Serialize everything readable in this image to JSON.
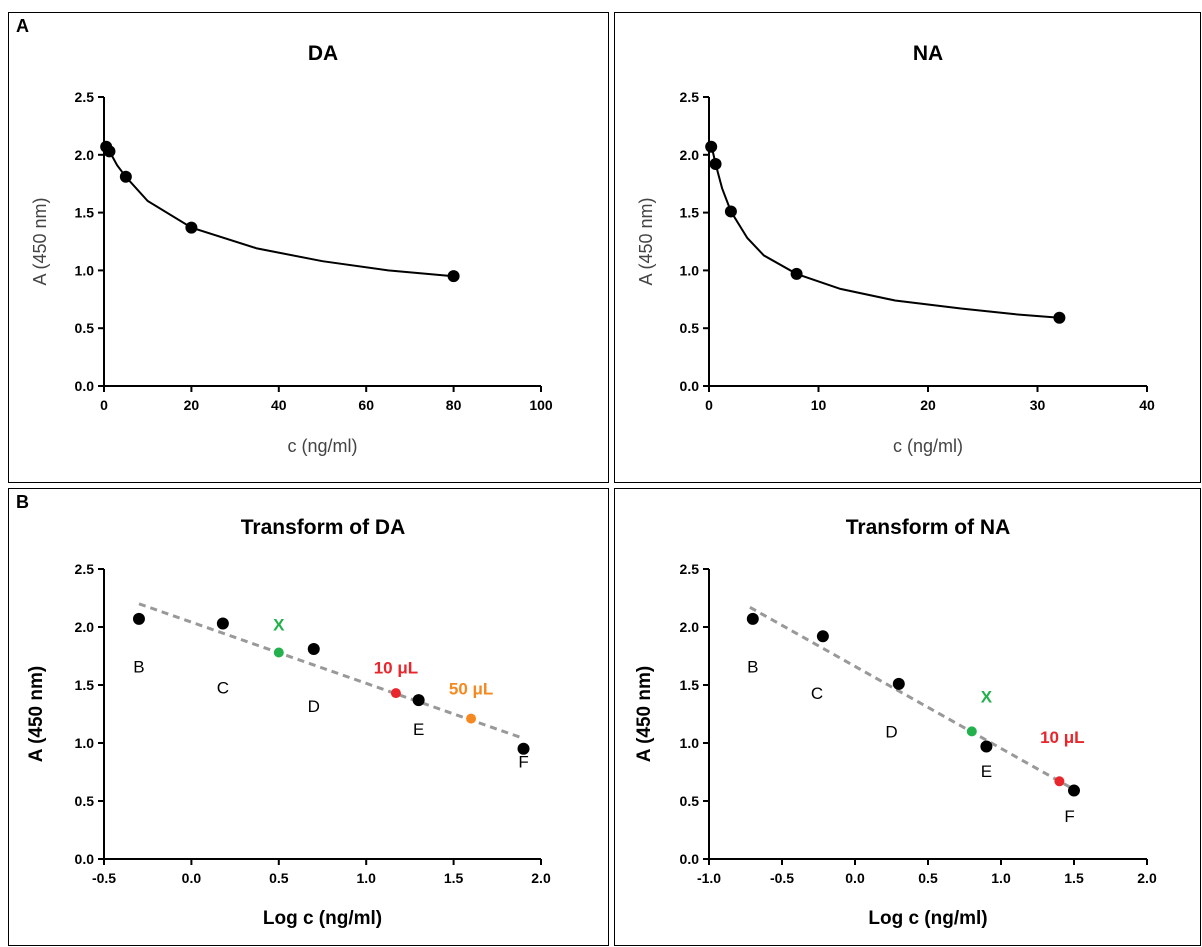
{
  "figure": {
    "panel_letters": [
      "A",
      "B"
    ]
  },
  "chart_data": [
    {
      "type": "scatter",
      "title": "DA",
      "xlabel": "c (ng/ml)",
      "ylabel": "A (450 nm)",
      "xlim": [
        0,
        100
      ],
      "ylim": [
        0,
        2.5
      ],
      "xticks": [
        0,
        20,
        40,
        60,
        80,
        100
      ],
      "yticks": [
        0.0,
        0.5,
        1.0,
        1.5,
        2.0,
        2.5
      ],
      "xtick_labels": [
        "0",
        "20",
        "40",
        "60",
        "80",
        "100"
      ],
      "ytick_labels": [
        "0.0",
        "0.5",
        "1.0",
        "1.5",
        "2.0",
        "2.5"
      ],
      "grid": false,
      "bold_labels": false,
      "fit": "curve",
      "series": [
        {
          "x": [
            0.5,
            1.25,
            5,
            20,
            80
          ],
          "y": [
            2.07,
            2.03,
            1.81,
            1.37,
            0.95
          ]
        }
      ],
      "fit_line": {
        "x": [
          0.5,
          1.25,
          3,
          5,
          10,
          20,
          35,
          50,
          65,
          80
        ],
        "y": [
          2.07,
          2.03,
          1.91,
          1.81,
          1.6,
          1.37,
          1.19,
          1.08,
          1.0,
          0.95
        ]
      }
    },
    {
      "type": "scatter",
      "title": "NA",
      "xlabel": "c (ng/ml)",
      "ylabel": "A (450 nm)",
      "xlim": [
        0,
        40
      ],
      "ylim": [
        0,
        2.5
      ],
      "xticks": [
        0,
        10,
        20,
        30,
        40
      ],
      "yticks": [
        0.0,
        0.5,
        1.0,
        1.5,
        2.0,
        2.5
      ],
      "xtick_labels": [
        "0",
        "10",
        "20",
        "30",
        "40"
      ],
      "ytick_labels": [
        "0.0",
        "0.5",
        "1.0",
        "1.5",
        "2.0",
        "2.5"
      ],
      "grid": false,
      "bold_labels": false,
      "fit": "curve",
      "series": [
        {
          "x": [
            0.2,
            0.6,
            2,
            8,
            32
          ],
          "y": [
            2.07,
            1.92,
            1.51,
            0.97,
            0.59
          ]
        }
      ],
      "fit_line": {
        "x": [
          0.2,
          0.6,
          1.2,
          2,
          3.5,
          5,
          8,
          12,
          17,
          23,
          28,
          32
        ],
        "y": [
          2.09,
          1.92,
          1.71,
          1.51,
          1.28,
          1.13,
          0.97,
          0.84,
          0.74,
          0.67,
          0.62,
          0.59
        ]
      }
    },
    {
      "type": "scatter",
      "title": "Transform of DA",
      "xlabel": "Log c (ng/ml)",
      "ylabel": "A (450 nm)",
      "xlim": [
        -0.5,
        2.0
      ],
      "ylim": [
        0,
        2.5
      ],
      "xticks": [
        -0.5,
        0.0,
        0.5,
        1.0,
        1.5,
        2.0
      ],
      "yticks": [
        0.0,
        0.5,
        1.0,
        1.5,
        2.0,
        2.5
      ],
      "xtick_labels": [
        "-0.5",
        "0.0",
        "0.5",
        "1.0",
        "1.5",
        "2.0"
      ],
      "ytick_labels": [
        "0.0",
        "0.5",
        "1.0",
        "1.5",
        "2.0",
        "2.5"
      ],
      "grid": false,
      "bold_labels": true,
      "fit": "dashed-line",
      "fit_line": {
        "x": [
          -0.3,
          1.9
        ],
        "y": [
          2.2,
          1.04
        ]
      },
      "series": [
        {
          "x": [
            -0.3,
            0.18,
            0.7,
            1.3,
            1.9
          ],
          "y": [
            2.07,
            2.03,
            1.81,
            1.37,
            0.95
          ],
          "labels": [
            "B",
            "C",
            "D",
            "E",
            "F"
          ],
          "label_pos": [
            [
              -0.3,
              1.66
            ],
            [
              0.18,
              1.48
            ],
            [
              0.7,
              1.32
            ],
            [
              1.3,
              1.12
            ],
            [
              1.9,
              0.84
            ]
          ],
          "color": "#000000"
        }
      ],
      "highlights": [
        {
          "x": 0.5,
          "y": 1.78,
          "color": "#22b14c",
          "label": "X",
          "label_pos": [
            0.5,
            2.02
          ]
        },
        {
          "x": 1.17,
          "y": 1.43,
          "color": "#e8262c",
          "label": "10 μL",
          "label_pos": [
            1.17,
            1.65
          ]
        },
        {
          "x": 1.6,
          "y": 1.21,
          "color": "#f5891f",
          "label": "50 μL",
          "label_pos": [
            1.6,
            1.47
          ]
        }
      ]
    },
    {
      "type": "scatter",
      "title": "Transform of NA",
      "xlabel": "Log c (ng/ml)",
      "ylabel": "A (450 nm)",
      "xlim": [
        -1.0,
        2.0
      ],
      "ylim": [
        0,
        2.5
      ],
      "xticks": [
        -1.0,
        -0.5,
        0.0,
        0.5,
        1.0,
        1.5,
        2.0
      ],
      "yticks": [
        0.0,
        0.5,
        1.0,
        1.5,
        2.0,
        2.5
      ],
      "xtick_labels": [
        "-1.0",
        "-0.5",
        "0.0",
        "0.5",
        "1.0",
        "1.5",
        "2.0"
      ],
      "ytick_labels": [
        "0.0",
        "0.5",
        "1.0",
        "1.5",
        "2.0",
        "2.5"
      ],
      "grid": false,
      "bold_labels": true,
      "fit": "dashed-line",
      "fit_line": {
        "x": [
          -0.72,
          1.5
        ],
        "y": [
          2.17,
          0.6
        ]
      },
      "series": [
        {
          "x": [
            -0.7,
            -0.22,
            0.3,
            0.9,
            1.5
          ],
          "y": [
            2.07,
            1.92,
            1.51,
            0.97,
            0.59
          ],
          "labels": [
            "B",
            "C",
            "D",
            "E",
            "F"
          ],
          "label_pos": [
            [
              -0.7,
              1.66
            ],
            [
              -0.26,
              1.43
            ],
            [
              0.25,
              1.1
            ],
            [
              0.9,
              0.76
            ],
            [
              1.47,
              0.37
            ]
          ],
          "color": "#000000"
        }
      ],
      "highlights": [
        {
          "x": 0.8,
          "y": 1.1,
          "color": "#22b14c",
          "label": "X",
          "label_pos": [
            0.9,
            1.4
          ]
        },
        {
          "x": 1.4,
          "y": 0.67,
          "color": "#e8262c",
          "label": "10 μL",
          "label_pos": [
            1.42,
            1.05
          ]
        }
      ]
    }
  ]
}
